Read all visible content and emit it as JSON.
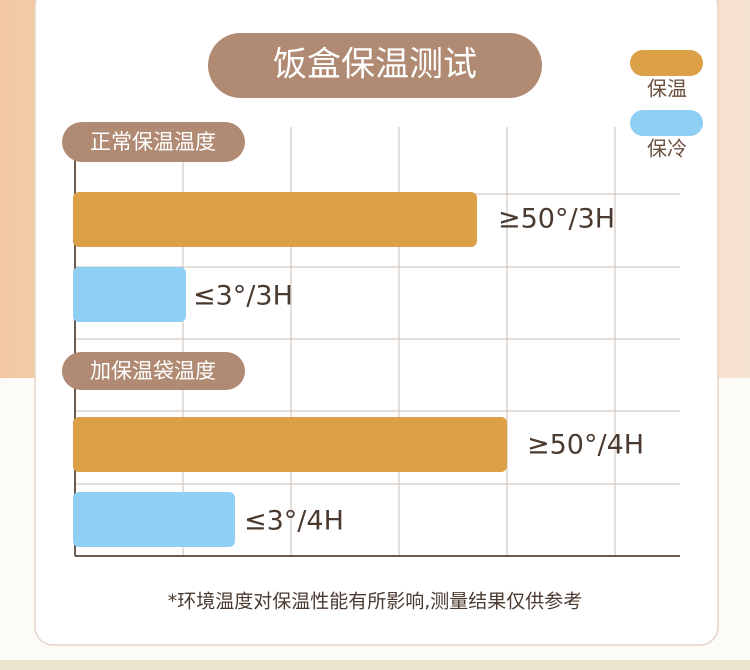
{
  "title": "饭盒保温测试",
  "legend": [
    "保温",
    "保冷"
  ],
  "groups": [
    {
      "label": "正常保温温度",
      "bars": [
        {
          "label": "≥50°/3H"
        },
        {
          "label": "≤3°/3H"
        }
      ]
    },
    {
      "label": "加保温袋温度",
      "bars": [
        {
          "label": "≥50°/4H"
        },
        {
          "label": "≤3°/4H"
        }
      ]
    }
  ],
  "footnote": "*环境温度对保温性能有所影响,测量结果仅供参考"
}
